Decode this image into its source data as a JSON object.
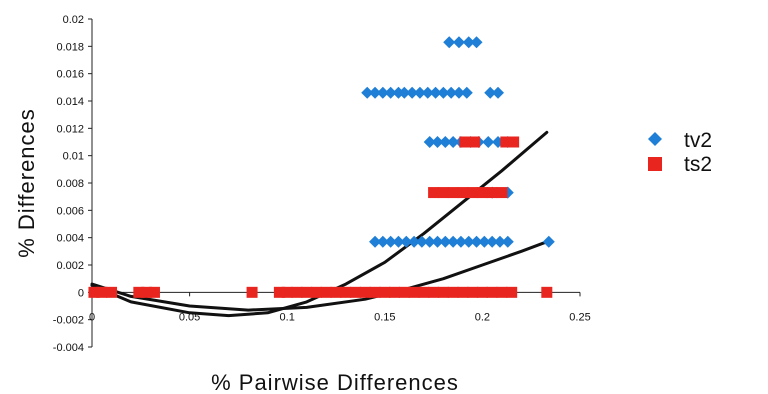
{
  "chart_data": {
    "type": "scatter",
    "xlabel": "% Pairwise Differences",
    "ylabel": "% Differences",
    "xlim": [
      0,
      0.25
    ],
    "ylim": [
      -0.004,
      0.02
    ],
    "x_ticks": [
      "0",
      "0.05",
      "0.1",
      "0.15",
      "0.2",
      "0.25"
    ],
    "y_ticks": [
      "-0.004",
      "-0.002",
      "0",
      "0.002",
      "0.004",
      "0.006",
      "0.008",
      "0.01",
      "0.012",
      "0.014",
      "0.016",
      "0.018",
      "0.02"
    ],
    "x_tick_values": [
      0,
      0.05,
      0.1,
      0.15,
      0.2,
      0.25
    ],
    "y_tick_values": [
      -0.004,
      -0.002,
      0,
      0.002,
      0.004,
      0.006,
      0.008,
      0.01,
      0.012,
      0.014,
      0.016,
      0.018,
      0.02
    ],
    "grid": false,
    "legend_position": "right",
    "series": [
      {
        "name": "tv2",
        "marker": "diamond",
        "color": "#1f7fd6",
        "points": [
          [
            0.183,
            0.0183
          ],
          [
            0.188,
            0.0183
          ],
          [
            0.193,
            0.0183
          ],
          [
            0.197,
            0.0183
          ],
          [
            0.141,
            0.0146
          ],
          [
            0.145,
            0.0146
          ],
          [
            0.149,
            0.0146
          ],
          [
            0.153,
            0.0146
          ],
          [
            0.157,
            0.0146
          ],
          [
            0.16,
            0.0146
          ],
          [
            0.164,
            0.0146
          ],
          [
            0.168,
            0.0146
          ],
          [
            0.172,
            0.0146
          ],
          [
            0.176,
            0.0146
          ],
          [
            0.18,
            0.0146
          ],
          [
            0.184,
            0.0146
          ],
          [
            0.188,
            0.0146
          ],
          [
            0.192,
            0.0146
          ],
          [
            0.204,
            0.0146
          ],
          [
            0.208,
            0.0146
          ],
          [
            0.173,
            0.011
          ],
          [
            0.177,
            0.011
          ],
          [
            0.181,
            0.011
          ],
          [
            0.185,
            0.011
          ],
          [
            0.189,
            0.011
          ],
          [
            0.194,
            0.011
          ],
          [
            0.198,
            0.011
          ],
          [
            0.203,
            0.011
          ],
          [
            0.208,
            0.011
          ],
          [
            0.213,
            0.011
          ],
          [
            0.205,
            0.0073
          ],
          [
            0.213,
            0.0073
          ],
          [
            0.145,
            0.0037
          ],
          [
            0.149,
            0.0037
          ],
          [
            0.153,
            0.0037
          ],
          [
            0.157,
            0.0037
          ],
          [
            0.161,
            0.0037
          ],
          [
            0.165,
            0.0037
          ],
          [
            0.169,
            0.0037
          ],
          [
            0.173,
            0.0037
          ],
          [
            0.177,
            0.0037
          ],
          [
            0.181,
            0.0037
          ],
          [
            0.185,
            0.0037
          ],
          [
            0.189,
            0.0037
          ],
          [
            0.193,
            0.0037
          ],
          [
            0.197,
            0.0037
          ],
          [
            0.201,
            0.0037
          ],
          [
            0.205,
            0.0037
          ],
          [
            0.209,
            0.0037
          ],
          [
            0.213,
            0.0037
          ],
          [
            0.234,
            0.0037
          ]
        ]
      },
      {
        "name": "ts2",
        "marker": "square",
        "color": "#e8261f",
        "points": [
          [
            0.001,
            0
          ],
          [
            0.005,
            0
          ],
          [
            0.01,
            0
          ],
          [
            0.024,
            0
          ],
          [
            0.028,
            0
          ],
          [
            0.032,
            0
          ],
          [
            0.082,
            0
          ],
          [
            0.096,
            0
          ],
          [
            0.1,
            0
          ],
          [
            0.105,
            0
          ],
          [
            0.11,
            0
          ],
          [
            0.115,
            0
          ],
          [
            0.12,
            0
          ],
          [
            0.125,
            0
          ],
          [
            0.13,
            0
          ],
          [
            0.135,
            0
          ],
          [
            0.14,
            0
          ],
          [
            0.145,
            0
          ],
          [
            0.15,
            0
          ],
          [
            0.155,
            0
          ],
          [
            0.16,
            0
          ],
          [
            0.165,
            0
          ],
          [
            0.17,
            0
          ],
          [
            0.175,
            0
          ],
          [
            0.18,
            0
          ],
          [
            0.185,
            0
          ],
          [
            0.19,
            0
          ],
          [
            0.195,
            0
          ],
          [
            0.2,
            0
          ],
          [
            0.205,
            0
          ],
          [
            0.21,
            0
          ],
          [
            0.215,
            0
          ],
          [
            0.233,
            0
          ],
          [
            0.175,
            0.0073
          ],
          [
            0.18,
            0.0073
          ],
          [
            0.185,
            0.0073
          ],
          [
            0.19,
            0.0073
          ],
          [
            0.195,
            0.0073
          ],
          [
            0.2,
            0.0073
          ],
          [
            0.205,
            0.0073
          ],
          [
            0.21,
            0.0073
          ],
          [
            0.191,
            0.011
          ],
          [
            0.196,
            0.011
          ],
          [
            0.212,
            0.011
          ],
          [
            0.216,
            0.011
          ]
        ]
      }
    ],
    "trendlines": [
      {
        "type": "polynomial",
        "color": "#111111",
        "points": [
          [
            0,
            0.0005
          ],
          [
            0.02,
            -0.0007
          ],
          [
            0.05,
            -0.0015
          ],
          [
            0.07,
            -0.0017
          ],
          [
            0.09,
            -0.0015
          ],
          [
            0.11,
            -0.0007
          ],
          [
            0.13,
            0.0006
          ],
          [
            0.15,
            0.0022
          ],
          [
            0.17,
            0.0043
          ],
          [
            0.19,
            0.0066
          ],
          [
            0.21,
            0.0089
          ],
          [
            0.233,
            0.0117
          ]
        ]
      },
      {
        "type": "polynomial",
        "color": "#111111",
        "points": [
          [
            0,
            0.0006
          ],
          [
            0.02,
            -0.0003
          ],
          [
            0.05,
            -0.001
          ],
          [
            0.08,
            -0.0013
          ],
          [
            0.11,
            -0.0011
          ],
          [
            0.14,
            -0.0005
          ],
          [
            0.16,
            0.0002
          ],
          [
            0.18,
            0.001
          ],
          [
            0.2,
            0.002
          ],
          [
            0.22,
            0.003
          ],
          [
            0.233,
            0.0037
          ]
        ]
      }
    ]
  }
}
